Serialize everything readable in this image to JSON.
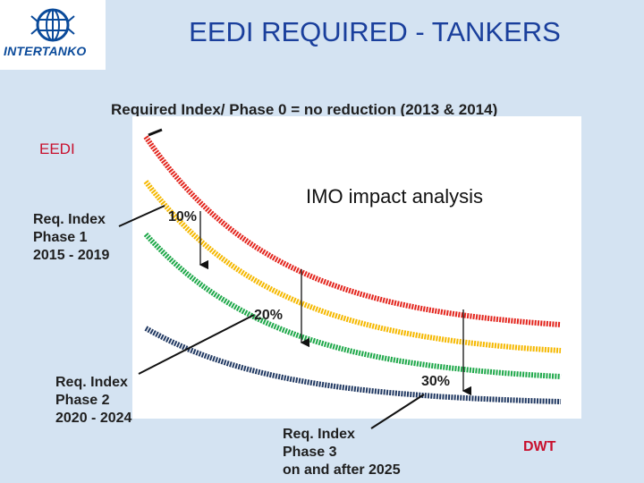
{
  "header": {
    "title": "EEDI REQUIRED - TANKERS",
    "logo_text": "INTERTANKO"
  },
  "subtitle": "Required Index/ Phase 0 = no reduction (2013 & 2014)",
  "axis": {
    "y_label": "EEDI",
    "x_label": "DWT"
  },
  "annotation": "IMO impact analysis",
  "phases": [
    {
      "line1": "Req. Index",
      "line2": "Phase 1",
      "line3": "2015 - 2019",
      "reduction": "10%"
    },
    {
      "line1": "Req. Index",
      "line2": "Phase 2",
      "line3": "2020 - 2024",
      "reduction": "20%"
    },
    {
      "line1": "Req. Index",
      "line2": "Phase 3",
      "line3": "on and after 2025",
      "reduction": "30%"
    }
  ],
  "curves": [
    {
      "name": "Phase 0",
      "color": "#e3261e"
    },
    {
      "name": "Phase 1",
      "color": "#f5b800"
    },
    {
      "name": "Phase 2",
      "color": "#1fa84a"
    },
    {
      "name": "Phase 3",
      "color": "#223a63"
    }
  ]
}
